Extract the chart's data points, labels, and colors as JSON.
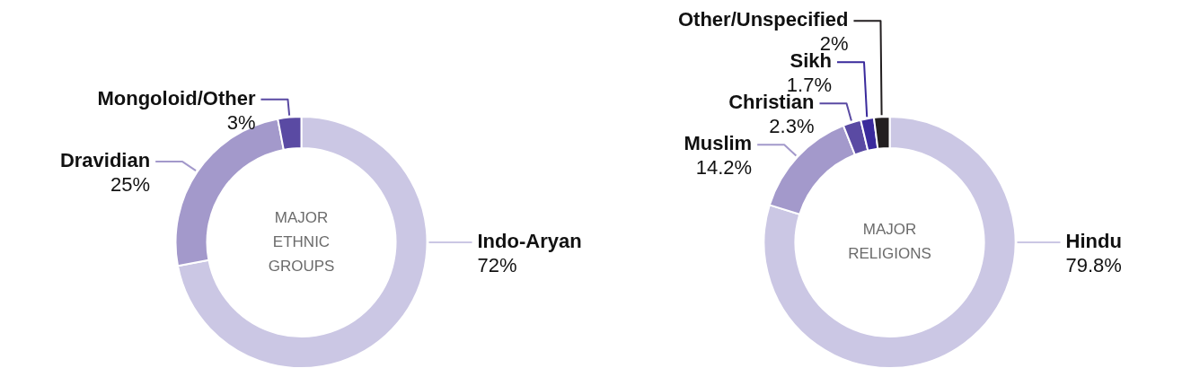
{
  "chart_data": [
    {
      "type": "donut",
      "title": "MAJOR ETHNIC GROUPS",
      "categories": [
        "Indo-Aryan",
        "Dravidian",
        "Mongoloid/Other"
      ],
      "values": [
        72,
        25,
        3
      ],
      "value_labels": [
        "72%",
        "25%",
        "3%"
      ],
      "colors": [
        "#cbc7e4",
        "#a399cb",
        "#5a4aa3"
      ],
      "legend": false
    },
    {
      "type": "donut",
      "title": "MAJOR RELIGIONS",
      "categories": [
        "Hindu",
        "Muslim",
        "Christian",
        "Sikh",
        "Other/Unspecified"
      ],
      "values": [
        79.8,
        14.2,
        2.3,
        1.7,
        2
      ],
      "value_labels": [
        "79.8%",
        "14.2%",
        "2.3%",
        "1.7%",
        "2%"
      ],
      "colors": [
        "#cbc7e4",
        "#a399cb",
        "#5a4aa3",
        "#3a2a9c",
        "#231f20"
      ],
      "legend": false
    }
  ]
}
